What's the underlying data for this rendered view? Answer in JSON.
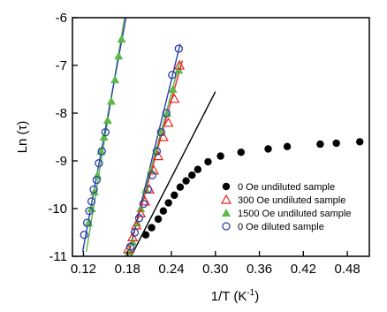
{
  "chart_data": {
    "type": "scatter",
    "xlabel": "1/T (K",
    "xlabel_sup": "-1",
    "xlabel_end": ")",
    "ylabel": "Ln (τ)",
    "xlim": [
      0.105,
      0.51
    ],
    "ylim": [
      -11,
      -6
    ],
    "xticks": [
      0.12,
      0.18,
      0.24,
      0.3,
      0.36,
      0.42,
      0.48
    ],
    "xtick_labels": [
      "0.12",
      "0.18",
      "0.24",
      "0.30",
      "0.36",
      "0.42",
      "0.48"
    ],
    "yticks": [
      -11,
      -10,
      -9,
      -8,
      -7,
      -6
    ],
    "ytick_labels": [
      "-11",
      "-10",
      "-9",
      "-8",
      "-7",
      "-6"
    ],
    "grid": false,
    "legend_position": "lower-right",
    "series": [
      {
        "name": "0 Oe undiluted sample",
        "marker": "filled-circle",
        "color": "#000000",
        "x": [
          0.205,
          0.213,
          0.222,
          0.229,
          0.236,
          0.244,
          0.252,
          0.26,
          0.268,
          0.276,
          0.29,
          0.307,
          0.335,
          0.372,
          0.398,
          0.443,
          0.465,
          0.497
        ],
        "y": [
          -10.55,
          -10.4,
          -10.22,
          -10.05,
          -9.88,
          -9.72,
          -9.55,
          -9.42,
          -9.3,
          -9.18,
          -9.02,
          -8.9,
          -8.82,
          -8.75,
          -8.7,
          -8.65,
          -8.63,
          -8.6
        ],
        "fit": {
          "x": [
            0.185,
            0.3
          ],
          "y": [
            -11,
            -7.55
          ],
          "color": "#000000"
        }
      },
      {
        "name": "300 Oe undiluted sample",
        "marker": "open-triangle",
        "color": "#e8231f",
        "x": [
          0.181,
          0.187,
          0.192,
          0.198,
          0.204,
          0.21,
          0.216,
          0.222,
          0.229,
          0.236,
          0.244,
          0.251
        ],
        "y": [
          -10.85,
          -10.6,
          -10.35,
          -10.1,
          -9.85,
          -9.6,
          -9.2,
          -8.9,
          -8.5,
          -8.2,
          -7.7,
          -7.0
        ],
        "fit": {
          "x": [
            0.18,
            0.255
          ],
          "y": [
            -11,
            -6.9
          ],
          "color": "#e8231f"
        }
      },
      {
        "name": "1500 Oe undiluted sample",
        "marker": "filled-triangle",
        "color": "#5ab947",
        "x": [
          0.127,
          0.131,
          0.135,
          0.139,
          0.144,
          0.148,
          0.153,
          0.158,
          0.163,
          0.168,
          0.172,
          0.182,
          0.187,
          0.193,
          0.198,
          0.205,
          0.212,
          0.219,
          0.226,
          0.234,
          0.242,
          0.25
        ],
        "y": [
          -10.3,
          -10.0,
          -9.65,
          -9.3,
          -8.8,
          -8.5,
          -8.15,
          -7.75,
          -7.3,
          -6.8,
          -6.45,
          -10.9,
          -10.7,
          -10.3,
          -10.0,
          -9.6,
          -9.2,
          -8.8,
          -8.4,
          -8.0,
          -7.5,
          -7.1
        ],
        "fit": [
          {
            "x": [
              0.124,
              0.176
            ],
            "y": [
              -10.9,
              -6.0
            ],
            "color": "#5ab947"
          },
          {
            "x": [
              0.18,
              0.252
            ],
            "y": [
              -11,
              -6.9
            ],
            "color": "#5ab947"
          }
        ]
      },
      {
        "name": "0 Oe diluted sample",
        "marker": "open-circle",
        "color": "#2a3fa8",
        "x": [
          0.121,
          0.125,
          0.128,
          0.131,
          0.134,
          0.138,
          0.141,
          0.145,
          0.15,
          0.184,
          0.19,
          0.196,
          0.202,
          0.208,
          0.214,
          0.22,
          0.226,
          0.233,
          0.241,
          0.25
        ],
        "y": [
          -10.55,
          -10.3,
          -10.05,
          -9.85,
          -9.6,
          -9.4,
          -9.05,
          -8.8,
          -8.4,
          -10.8,
          -10.5,
          -10.2,
          -9.9,
          -9.6,
          -9.3,
          -8.8,
          -8.4,
          -8.0,
          -7.2,
          -6.65
        ],
        "fit": [
          {
            "x": [
              0.119,
              0.178
            ],
            "y": [
              -10.9,
              -6.0
            ],
            "color": "#2a3fa8"
          },
          {
            "x": [
              0.181,
              0.252
            ],
            "y": [
              -11,
              -6.55
            ],
            "color": "#2a3fa8"
          }
        ]
      }
    ]
  }
}
